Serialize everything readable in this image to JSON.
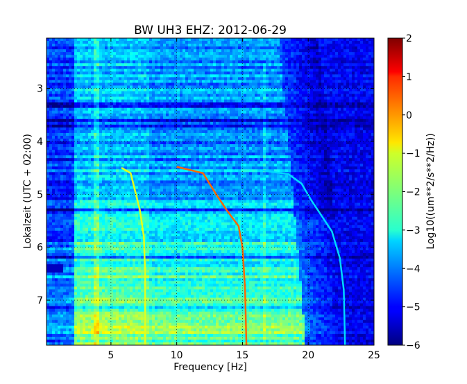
{
  "chart_data": {
    "type": "heatmap",
    "title": "BW UH3 EHZ: 2012-06-29",
    "xlabel": "Frequency [Hz]",
    "ylabel": "Lokalzeit (UTC + 02:00)",
    "colorbar_label": "Log10((um**2/s**2/Hz))",
    "colormap": "jet",
    "xlim": [
      0.1,
      25
    ],
    "ylim": [
      7.85,
      2.05
    ],
    "y_inverted": true,
    "clim": [
      -6,
      2
    ],
    "x_ticks": [
      "5",
      "10",
      "15",
      "20",
      "25"
    ],
    "y_ticks": [
      "3",
      "4",
      "5",
      "6",
      "7"
    ],
    "colorbar_ticks": [
      "2",
      "1",
      "0",
      "−1",
      "−2",
      "−3",
      "−4",
      "−5",
      "−6"
    ],
    "grid": "dotted",
    "spectral_lines": [
      {
        "points": [
          [
            5.8,
            4.5
          ],
          [
            6.5,
            4.6
          ],
          [
            6.8,
            4.9
          ],
          [
            7.2,
            5.3
          ],
          [
            7.5,
            5.8
          ],
          [
            7.6,
            6.5
          ],
          [
            7.6,
            7.85
          ]
        ],
        "level": -1.2
      },
      {
        "points": [
          [
            10,
            4.48
          ],
          [
            12,
            4.6
          ],
          [
            13,
            5.0
          ],
          [
            13.8,
            5.3
          ],
          [
            14.7,
            5.6
          ],
          [
            15.0,
            6.0
          ],
          [
            15.2,
            6.8
          ],
          [
            15.3,
            7.85
          ]
        ],
        "level": 0.2
      },
      {
        "points": [
          [
            16.5,
            4.55
          ],
          [
            18.5,
            4.62
          ],
          [
            19.5,
            4.8
          ],
          [
            20.2,
            5.1
          ],
          [
            21,
            5.4
          ],
          [
            21.8,
            5.7
          ],
          [
            22.4,
            6.2
          ],
          [
            22.7,
            6.8
          ],
          [
            22.8,
            7.85
          ]
        ],
        "level": -3.3
      }
    ]
  }
}
